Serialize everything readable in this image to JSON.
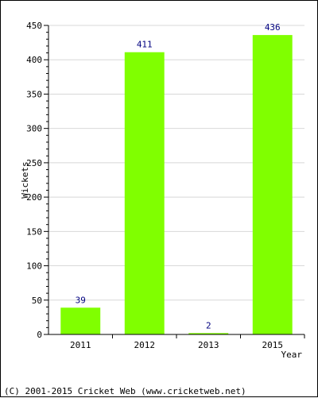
{
  "chart_data": {
    "type": "bar",
    "categories": [
      "2011",
      "2012",
      "2013",
      "2015"
    ],
    "values": [
      39,
      411,
      2,
      436
    ],
    "data_labels": [
      "39",
      "411",
      "2",
      "436"
    ],
    "xlabel": "Year",
    "ylabel": "Wickets",
    "ylim": [
      0,
      450
    ],
    "yticks": [
      0,
      50,
      100,
      150,
      200,
      250,
      300,
      350,
      400,
      450
    ],
    "grid": true,
    "bar_color": "#80ff00",
    "label_color": "#000080"
  },
  "footer": {
    "copyright": "(C) 2001-2015 Cricket Web (www.cricketweb.net)"
  }
}
